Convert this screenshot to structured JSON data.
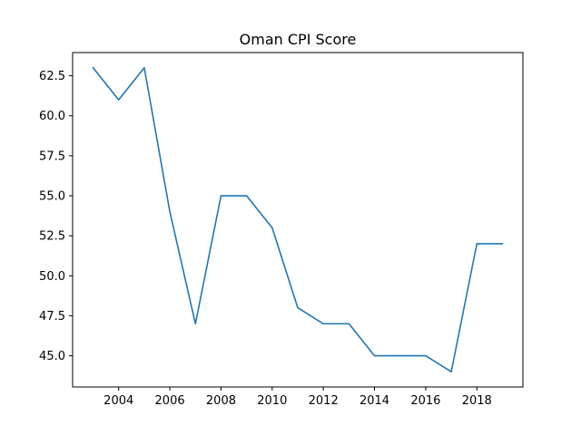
{
  "chart_data": {
    "type": "line",
    "title": "Oman CPI Score",
    "xlabel": "",
    "ylabel": "",
    "x": [
      2003,
      2004,
      2005,
      2006,
      2007,
      2008,
      2009,
      2010,
      2011,
      2012,
      2013,
      2014,
      2015,
      2016,
      2017,
      2018,
      2019
    ],
    "series": [
      {
        "values": [
          63,
          61,
          63,
          54,
          47,
          55,
          55,
          53,
          48,
          47,
          47,
          45,
          45,
          45,
          44,
          52,
          52
        ],
        "color": "#1f77b4"
      }
    ],
    "xlim": [
      2002.2,
      2019.8
    ],
    "ylim": [
      43.05,
      63.95
    ],
    "x_ticks": [
      2004,
      2006,
      2008,
      2010,
      2012,
      2014,
      2016,
      2018
    ],
    "x_tick_labels": [
      "2004",
      "2006",
      "2008",
      "2010",
      "2012",
      "2014",
      "2016",
      "2018"
    ],
    "y_ticks": [
      45.0,
      47.5,
      50.0,
      52.5,
      55.0,
      57.5,
      60.0,
      62.5
    ],
    "y_tick_labels": [
      "45.0",
      "47.5",
      "50.0",
      "52.5",
      "55.0",
      "57.5",
      "60.0",
      "62.5"
    ],
    "grid": false,
    "legend": "none"
  }
}
